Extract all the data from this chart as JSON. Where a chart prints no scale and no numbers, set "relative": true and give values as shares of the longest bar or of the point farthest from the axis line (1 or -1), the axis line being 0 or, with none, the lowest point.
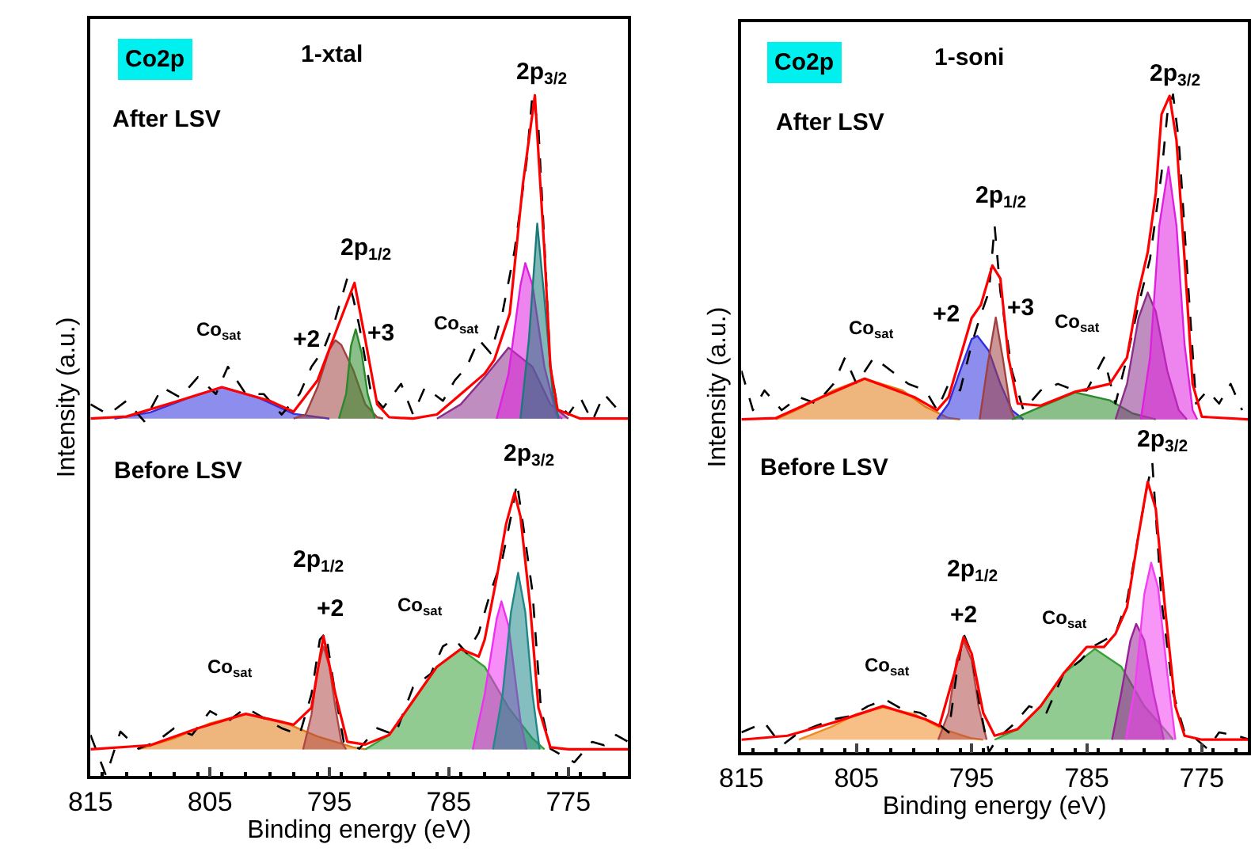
{
  "chart_data": [
    {
      "type": "line",
      "title": "1-xtal",
      "xlabel": "Binding energy (eV)",
      "ylabel": "Intensity (a.u.)",
      "relative": true,
      "xlim": [
        815,
        770
      ],
      "xticks": [
        815,
        805,
        795,
        785,
        775
      ],
      "series": [
        {
          "type": "area",
          "color": "#3030e0",
          "x": [
            813,
            810,
            807,
            804,
            801,
            798,
            795
          ],
          "values": [
            0.524,
            0.533,
            0.553,
            0.57,
            0.555,
            0.531,
            0.524
          ]
        },
        {
          "type": "area",
          "color": "#a04040",
          "x": [
            798,
            797,
            796,
            795,
            794.5,
            794,
            793,
            792,
            791,
            790.5
          ],
          "values": [
            0.524,
            0.53,
            0.57,
            0.625,
            0.639,
            0.632,
            0.595,
            0.545,
            0.526,
            0.524
          ]
        },
        {
          "type": "area",
          "color": "#2a8a2a",
          "x": [
            794.2,
            793.6,
            793.2,
            792.8,
            792.3,
            791.8,
            791.2
          ],
          "values": [
            0.524,
            0.56,
            0.63,
            0.655,
            0.62,
            0.56,
            0.524
          ]
        },
        {
          "type": "area",
          "color": "#8a308a",
          "x": [
            786,
            784,
            782,
            780,
            778,
            776.5,
            775
          ],
          "values": [
            0.524,
            0.545,
            0.585,
            0.628,
            0.6,
            0.545,
            0.524
          ]
        },
        {
          "type": "area",
          "color": "#e020e0",
          "x": [
            781,
            780,
            779,
            778.6,
            778,
            777,
            776,
            775.5
          ],
          "values": [
            0.524,
            0.59,
            0.72,
            0.752,
            0.72,
            0.6,
            0.53,
            0.524
          ]
        },
        {
          "type": "area",
          "color": "#1a7a7a",
          "x": [
            779,
            778.3,
            777.6,
            777,
            776.3,
            775.8
          ],
          "values": [
            0.524,
            0.64,
            0.81,
            0.7,
            0.56,
            0.524
          ]
        },
        {
          "type": "area",
          "color": "#e07a10",
          "x": [
            811,
            808,
            805,
            802,
            799,
            796,
            793,
            792
          ],
          "values": [
            0.039,
            0.055,
            0.077,
            0.091,
            0.08,
            0.058,
            0.042,
            0.039
          ]
        },
        {
          "type": "area",
          "color": "#b04848",
          "x": [
            797.2,
            796.5,
            796,
            795.5,
            795,
            794.5,
            794,
            793.6
          ],
          "values": [
            0.039,
            0.09,
            0.155,
            0.19,
            0.16,
            0.1,
            0.05,
            0.039
          ]
        },
        {
          "type": "area",
          "color": "#38a038",
          "x": [
            792,
            790,
            788,
            786,
            784,
            782,
            780,
            778,
            777
          ],
          "values": [
            0.039,
            0.06,
            0.11,
            0.16,
            0.186,
            0.16,
            0.1,
            0.055,
            0.039
          ]
        },
        {
          "type": "area",
          "color": "#f030f0",
          "x": [
            783,
            782,
            781,
            780.6,
            780,
            779.5,
            779,
            778.5
          ],
          "values": [
            0.039,
            0.12,
            0.23,
            0.256,
            0.22,
            0.15,
            0.08,
            0.039
          ]
        },
        {
          "type": "area",
          "color": "#208888",
          "x": [
            781.3,
            780.5,
            779.8,
            779.2,
            778.6,
            778,
            777.4
          ],
          "values": [
            0.039,
            0.12,
            0.24,
            0.298,
            0.24,
            0.12,
            0.039
          ]
        },
        {
          "color": "#000000",
          "line_style": "dashed",
          "x": [
            815,
            813.5,
            812,
            810.5,
            809,
            807.5,
            806,
            804.5,
            803.5,
            802,
            800.5,
            799,
            797.5,
            796.5,
            795.5,
            794.5,
            793.5,
            793,
            792.5,
            791.5,
            790.5,
            789,
            788,
            787,
            785.5,
            784.5,
            783.5,
            782.5,
            781.5,
            780.5,
            779.5,
            778.5,
            778,
            777.5,
            777,
            776.5,
            776,
            775,
            774,
            773,
            772,
            771,
            770
          ],
          "values": [
            0.545,
            0.53,
            0.55,
            0.52,
            0.57,
            0.555,
            0.585,
            0.56,
            0.6,
            0.56,
            0.56,
            0.53,
            0.56,
            0.6,
            0.625,
            0.67,
            0.73,
            0.7,
            0.66,
            0.56,
            0.54,
            0.575,
            0.53,
            0.57,
            0.55,
            0.58,
            0.6,
            0.64,
            0.62,
            0.68,
            0.77,
            0.9,
            1.0,
            0.95,
            0.78,
            0.6,
            0.55,
            0.53,
            0.555,
            0.52,
            0.56,
            0.54,
            0.55
          ]
        },
        {
          "color": "#000000",
          "line_style": "dashed",
          "x": [
            815,
            813.7,
            812.5,
            811,
            809.5,
            808,
            806.5,
            805,
            803.5,
            802,
            800.5,
            799,
            797.5,
            796.5,
            795.8,
            795.3,
            794.6,
            793.8,
            792.5,
            791,
            789.5,
            788,
            786.5,
            785.5,
            784.5,
            783.5,
            782.5,
            781.5,
            780.5,
            779.8,
            779.3,
            778.8,
            778,
            777.3,
            776.5,
            775.5,
            774.5,
            773,
            772,
            771,
            770
          ],
          "values": [
            0.06,
            0.0,
            0.065,
            0.04,
            0.05,
            0.07,
            0.06,
            0.095,
            0.08,
            0.1,
            0.085,
            0.07,
            0.06,
            0.12,
            0.2,
            0.21,
            0.13,
            0.05,
            0.04,
            0.07,
            0.06,
            0.13,
            0.15,
            0.19,
            0.2,
            0.18,
            0.21,
            0.27,
            0.32,
            0.38,
            0.43,
            0.37,
            0.27,
            0.1,
            0.04,
            0.03,
            0.02,
            0.05,
            0.045,
            0.06,
            0.05
          ]
        },
        {
          "color": "#ff0000",
          "x": [
            815,
            812,
            808,
            804,
            800,
            798,
            796,
            794.7,
            792.9,
            792,
            791,
            790,
            788,
            786,
            784,
            782,
            781.2,
            779.9,
            778.8,
            777.8,
            777,
            776.5,
            775.9,
            774,
            770
          ],
          "values": [
            0.524,
            0.527,
            0.548,
            0.57,
            0.55,
            0.534,
            0.58,
            0.64,
            0.723,
            0.64,
            0.545,
            0.526,
            0.524,
            0.53,
            0.56,
            0.59,
            0.61,
            0.678,
            0.868,
            0.998,
            0.77,
            0.6,
            0.537,
            0.524,
            0.524
          ]
        },
        {
          "color": "#ff0000",
          "x": [
            815,
            810,
            806,
            802,
            798,
            796.5,
            795.5,
            794.5,
            793.5,
            792,
            790,
            788,
            786,
            784,
            782.5,
            782,
            781,
            780.2,
            779.5,
            779,
            778.2,
            777.5,
            776.5,
            775,
            770
          ],
          "values": [
            0.039,
            0.045,
            0.07,
            0.091,
            0.075,
            0.1,
            0.205,
            0.12,
            0.05,
            0.046,
            0.06,
            0.11,
            0.16,
            0.186,
            0.175,
            0.2,
            0.29,
            0.37,
            0.415,
            0.38,
            0.25,
            0.1,
            0.042,
            0.039,
            0.039
          ]
        }
      ],
      "annotations": [
        "Co2p",
        "After LSV",
        "2p$_{3/2}$",
        "2p$_{1/2}$",
        "+2",
        "+3",
        "Co$_{sat}$",
        "Co$_{sat}$",
        "Before LSV",
        "2p$_{3/2}$",
        "2p$_{1/2}$",
        "+2",
        "Co$_{sat}$",
        "Co$_{sat}$"
      ]
    },
    {
      "type": "line",
      "title": "1-soni",
      "xlabel": "Binding energy (eV)",
      "ylabel": "Intensity (a.u.)",
      "relative": true,
      "xlim": [
        815,
        771
      ],
      "xticks": [
        815,
        805,
        795,
        785,
        775
      ],
      "series": [
        {
          "type": "area",
          "color": "#e07a10",
          "x": [
            812,
            810,
            807,
            804.3,
            801,
            799,
            797,
            796
          ],
          "values": [
            0.506,
            0.522,
            0.55,
            0.568,
            0.55,
            0.525,
            0.508,
            0.506
          ]
        },
        {
          "type": "area",
          "color": "#3030e0",
          "x": [
            798,
            797,
            796,
            795,
            794.5,
            793.5,
            792.5,
            791.5,
            790.5
          ],
          "values": [
            0.506,
            0.53,
            0.58,
            0.628,
            0.633,
            0.61,
            0.56,
            0.52,
            0.506
          ]
        },
        {
          "type": "area",
          "color": "#a04040",
          "x": [
            794.3,
            793.6,
            792.9,
            792.3,
            791.6,
            791.2
          ],
          "values": [
            0.506,
            0.59,
            0.661,
            0.6,
            0.52,
            0.506
          ]
        },
        {
          "type": "area",
          "color": "#2a8a2a",
          "x": [
            791.5,
            789,
            786,
            783,
            781,
            779
          ],
          "values": [
            0.506,
            0.525,
            0.547,
            0.535,
            0.515,
            0.506
          ]
        },
        {
          "type": "area",
          "color": "#8a308a",
          "x": [
            782.5,
            781.5,
            780.5,
            779.7,
            779,
            778,
            777,
            776.3
          ],
          "values": [
            0.506,
            0.56,
            0.66,
            0.699,
            0.67,
            0.58,
            0.52,
            0.506
          ]
        },
        {
          "type": "area",
          "color": "#e020e0",
          "x": [
            780.3,
            779.5,
            778.7,
            777.9,
            777.2,
            776.5,
            775.8,
            775.4
          ],
          "values": [
            0.506,
            0.6,
            0.8,
            0.89,
            0.8,
            0.62,
            0.52,
            0.506
          ]
        },
        {
          "type": "area",
          "color": "#f08a20",
          "x": [
            810,
            807,
            805,
            802.7,
            800,
            797.5,
            795,
            794
          ],
          "values": [
            0.019,
            0.04,
            0.058,
            0.068,
            0.058,
            0.035,
            0.021,
            0.019
          ]
        },
        {
          "type": "area",
          "color": "#b04848",
          "x": [
            797.9,
            797,
            796.3,
            795.7,
            795,
            794.4,
            793.7
          ],
          "values": [
            0.019,
            0.06,
            0.14,
            0.169,
            0.14,
            0.07,
            0.019
          ]
        },
        {
          "type": "area",
          "color": "#38a038",
          "x": [
            793,
            791,
            789,
            787,
            784.3,
            782,
            780,
            778,
            777.5
          ],
          "values": [
            0.019,
            0.035,
            0.07,
            0.12,
            0.157,
            0.13,
            0.07,
            0.03,
            0.019
          ]
        },
        {
          "type": "area",
          "color": "#9a209a",
          "x": [
            782.8,
            782,
            781.2,
            780.7,
            780,
            779.2,
            778.3
          ],
          "values": [
            0.019,
            0.09,
            0.17,
            0.195,
            0.17,
            0.09,
            0.019
          ]
        },
        {
          "type": "area",
          "color": "#f040f0",
          "x": [
            781.6,
            780.8,
            780,
            779.4,
            778.8,
            778,
            777.3
          ],
          "values": [
            0.019,
            0.1,
            0.24,
            0.288,
            0.25,
            0.12,
            0.019
          ]
        },
        {
          "color": "#000000",
          "line_style": "dashed",
          "x": [
            815,
            814,
            813,
            811.5,
            810,
            808.5,
            807,
            806,
            805,
            803.5,
            802,
            800.5,
            799,
            798,
            797,
            796,
            795,
            794.3,
            793.5,
            793,
            792.5,
            791.5,
            790.5,
            789,
            787.5,
            786,
            785,
            783.5,
            782.5,
            781.5,
            780.5,
            779.5,
            778.5,
            778,
            777.5,
            777,
            776.3,
            775.5,
            774.5,
            773.5,
            772.5,
            771.5
          ],
          "values": [
            0.58,
            0.52,
            0.55,
            0.52,
            0.54,
            0.53,
            0.56,
            0.6,
            0.56,
            0.6,
            0.58,
            0.56,
            0.55,
            0.52,
            0.56,
            0.55,
            0.62,
            0.66,
            0.7,
            0.8,
            0.7,
            0.58,
            0.52,
            0.55,
            0.56,
            0.55,
            0.55,
            0.6,
            0.53,
            0.6,
            0.68,
            0.75,
            0.88,
            0.97,
            1.0,
            0.93,
            0.74,
            0.53,
            0.55,
            0.53,
            0.56,
            0.52
          ]
        },
        {
          "color": "#000000",
          "line_style": "dashed",
          "x": [
            815,
            813,
            811.5,
            810,
            808.5,
            807,
            805.5,
            804,
            802.5,
            801,
            799.5,
            798,
            797,
            796.3,
            795.7,
            795,
            794.3,
            793.5,
            792.8,
            791.5,
            790,
            788.5,
            787,
            785.5,
            784.5,
            783.5,
            782.5,
            781.5,
            780.5,
            779.8,
            779.3,
            778.5,
            777.5,
            776.5,
            775.5,
            774.5,
            773.5,
            772,
            771
          ],
          "values": [
            0.03,
            0.045,
            0.01,
            0.03,
            0.04,
            0.05,
            0.055,
            0.07,
            0.08,
            0.065,
            0.06,
            0.045,
            0.03,
            0.12,
            0.18,
            0.15,
            0.07,
            0.0,
            0.02,
            0.04,
            0.07,
            0.06,
            0.12,
            0.14,
            0.16,
            0.17,
            0.18,
            0.23,
            0.33,
            0.4,
            0.44,
            0.23,
            0.09,
            0.03,
            0.02,
            0.005,
            0.03,
            0.025,
            0.02
          ]
        },
        {
          "color": "#ff0000",
          "x": [
            815,
            812,
            808,
            804.3,
            800,
            798,
            797,
            796,
            795,
            794.2,
            793.2,
            792.5,
            791.8,
            791,
            789,
            786,
            783,
            781.5,
            780.5,
            779.7,
            779,
            778.5,
            777.8,
            777.2,
            776.5,
            775.8,
            775,
            771
          ],
          "values": [
            0.506,
            0.508,
            0.54,
            0.568,
            0.54,
            0.52,
            0.54,
            0.6,
            0.66,
            0.68,
            0.74,
            0.72,
            0.6,
            0.53,
            0.527,
            0.548,
            0.56,
            0.6,
            0.7,
            0.76,
            0.85,
            0.97,
            0.998,
            0.93,
            0.75,
            0.56,
            0.51,
            0.506
          ]
        },
        {
          "color": "#ff0000",
          "x": [
            815,
            811,
            807,
            802.7,
            799,
            797.8,
            796.5,
            795.7,
            795,
            794,
            793,
            791,
            789,
            787,
            785,
            783.5,
            782.5,
            781.5,
            780.5,
            779.7,
            779,
            778.2,
            777.3,
            776.5,
            775,
            771
          ],
          "values": [
            0.019,
            0.025,
            0.045,
            0.07,
            0.05,
            0.04,
            0.12,
            0.175,
            0.15,
            0.06,
            0.025,
            0.035,
            0.07,
            0.12,
            0.16,
            0.16,
            0.18,
            0.22,
            0.33,
            0.411,
            0.37,
            0.22,
            0.07,
            0.025,
            0.019,
            0.019
          ]
        }
      ],
      "annotations": [
        "Co2p",
        "After LSV",
        "2p$_{3/2}$",
        "2p$_{1/2}$",
        "+2",
        "+3",
        "Co$_{sat}$",
        "Co$_{sat}$",
        "Before LSV",
        "2p$_{3/2}$",
        "2p$_{1/2}$",
        "+2",
        "Co$_{sat}$",
        "Co$_{sat}$"
      ]
    }
  ]
}
